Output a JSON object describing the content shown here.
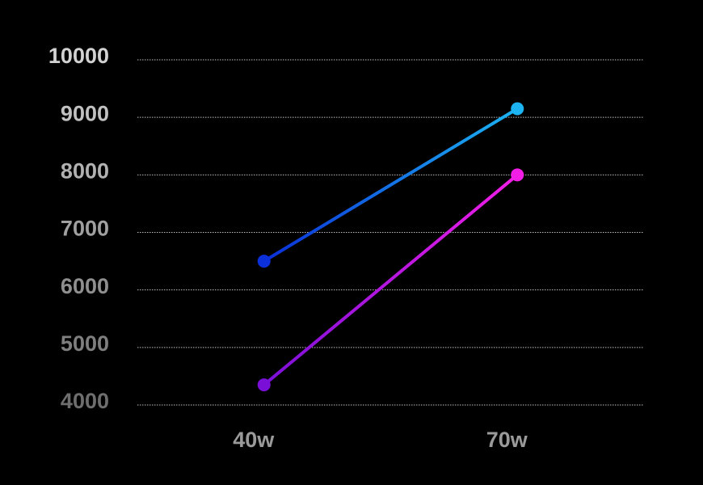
{
  "chart_data": {
    "type": "line",
    "categories": [
      "40w",
      "70w"
    ],
    "series": [
      {
        "color": [
          "#0b2fd8",
          "#1cb4f2"
        ],
        "values": [
          6500,
          9150
        ]
      },
      {
        "color": [
          "#7a10d8",
          "#f21ee6"
        ],
        "values": [
          4350,
          8000
        ]
      }
    ],
    "ylim": [
      4000,
      10000
    ],
    "yticks": [
      4000,
      5000,
      6000,
      7000,
      8000,
      9000,
      10000
    ],
    "grid": true
  }
}
